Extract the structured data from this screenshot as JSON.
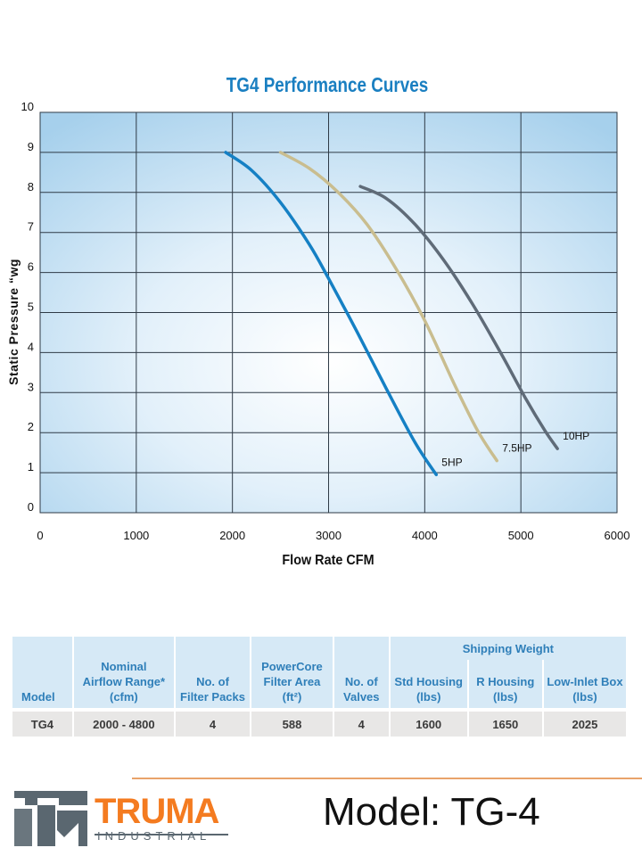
{
  "chart_data": {
    "type": "line",
    "title": "TG4 Performance Curves",
    "xlabel": "Flow Rate CFM",
    "ylabel": "Static Pressure “wg",
    "xlim": [
      0,
      6000
    ],
    "ylim": [
      0,
      10
    ],
    "xticks": [
      0,
      1000,
      2000,
      3000,
      4000,
      5000,
      6000
    ],
    "yticks": [
      0,
      1,
      2,
      3,
      4,
      5,
      6,
      7,
      8,
      9,
      10
    ],
    "grid": true,
    "series": [
      {
        "name": "5HP",
        "color": "#1580c4",
        "x": [
          1930,
          2200,
          2500,
          2800,
          3000,
          3300,
          3600,
          3900,
          4120
        ],
        "y": [
          9.0,
          8.55,
          7.75,
          6.7,
          5.85,
          4.5,
          3.1,
          1.75,
          0.95
        ]
      },
      {
        "name": "7.5HP",
        "color": "#c9bd8f",
        "x": [
          2500,
          2800,
          3100,
          3400,
          3700,
          4000,
          4300,
          4550,
          4750
        ],
        "y": [
          9.0,
          8.6,
          8.0,
          7.2,
          6.1,
          4.8,
          3.25,
          2.05,
          1.3
        ]
      },
      {
        "name": "10HP",
        "color": "#5f6b78",
        "x": [
          3330,
          3600,
          3900,
          4200,
          4500,
          4800,
          5050,
          5250,
          5380
        ],
        "y": [
          8.15,
          7.85,
          7.2,
          6.3,
          5.2,
          3.95,
          2.85,
          2.05,
          1.6
        ]
      }
    ]
  },
  "table": {
    "group_header": "Shipping Weight",
    "headers": [
      "Model",
      "Nominal\nAirflow Range*\n(cfm)",
      "No. of\nFilter Packs",
      "PowerCore\nFilter Area\n(ft²)",
      "No. of\nValves",
      "Std Housing\n(lbs)",
      "R Housing\n(lbs)",
      "Low-Inlet Box\n(lbs)"
    ],
    "rows": [
      [
        "TG4",
        "2000 - 4800",
        "4",
        "588",
        "4",
        "1600",
        "1650",
        "2025"
      ]
    ]
  },
  "logo": {
    "word": "TRUMA",
    "sub": "INDUSTRIAL",
    "color": "#f47b20"
  },
  "model_label": "Model: TG-4"
}
